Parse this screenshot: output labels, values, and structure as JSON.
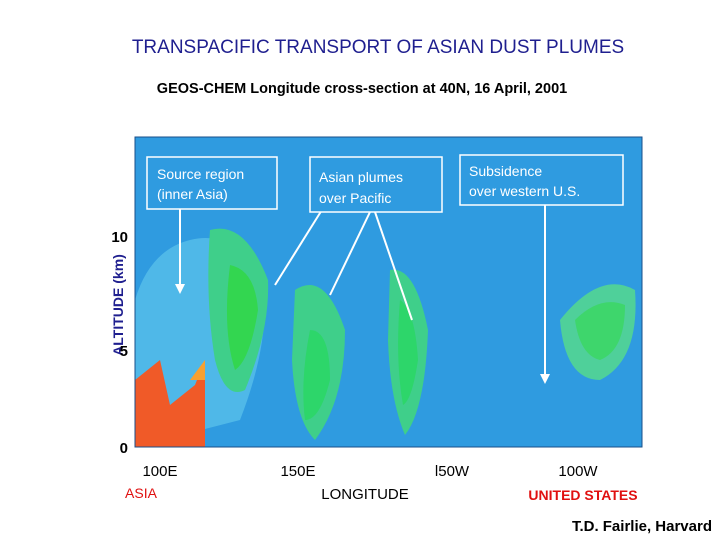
{
  "header": {
    "title": "TRANSPACIFIC TRANSPORT OF ASIAN DUST PLUMES",
    "subtitle": "GEOS-CHEM Longitude cross-section at 40N, 16 April, 2001"
  },
  "figure": {
    "y_axis_label": "ALTITUDE (km)",
    "y_tick_labels": [
      "10",
      "5",
      "0"
    ],
    "x_tick_labels": [
      "100E",
      "150E",
      "l50W",
      "100W"
    ],
    "x_axis_label": "LONGITUDE",
    "region_labels": [
      "ASIA",
      "UNITED STATES"
    ],
    "annotations": [
      {
        "lines": [
          "Source region",
          "(inner Asia)"
        ]
      },
      {
        "lines": [
          "Asian plumes",
          "over Pacific"
        ]
      },
      {
        "lines": [
          "Subsidence",
          "over western U.S."
        ]
      }
    ]
  },
  "footer": {
    "credit": "T.D. Fairlie, Harvard"
  }
}
